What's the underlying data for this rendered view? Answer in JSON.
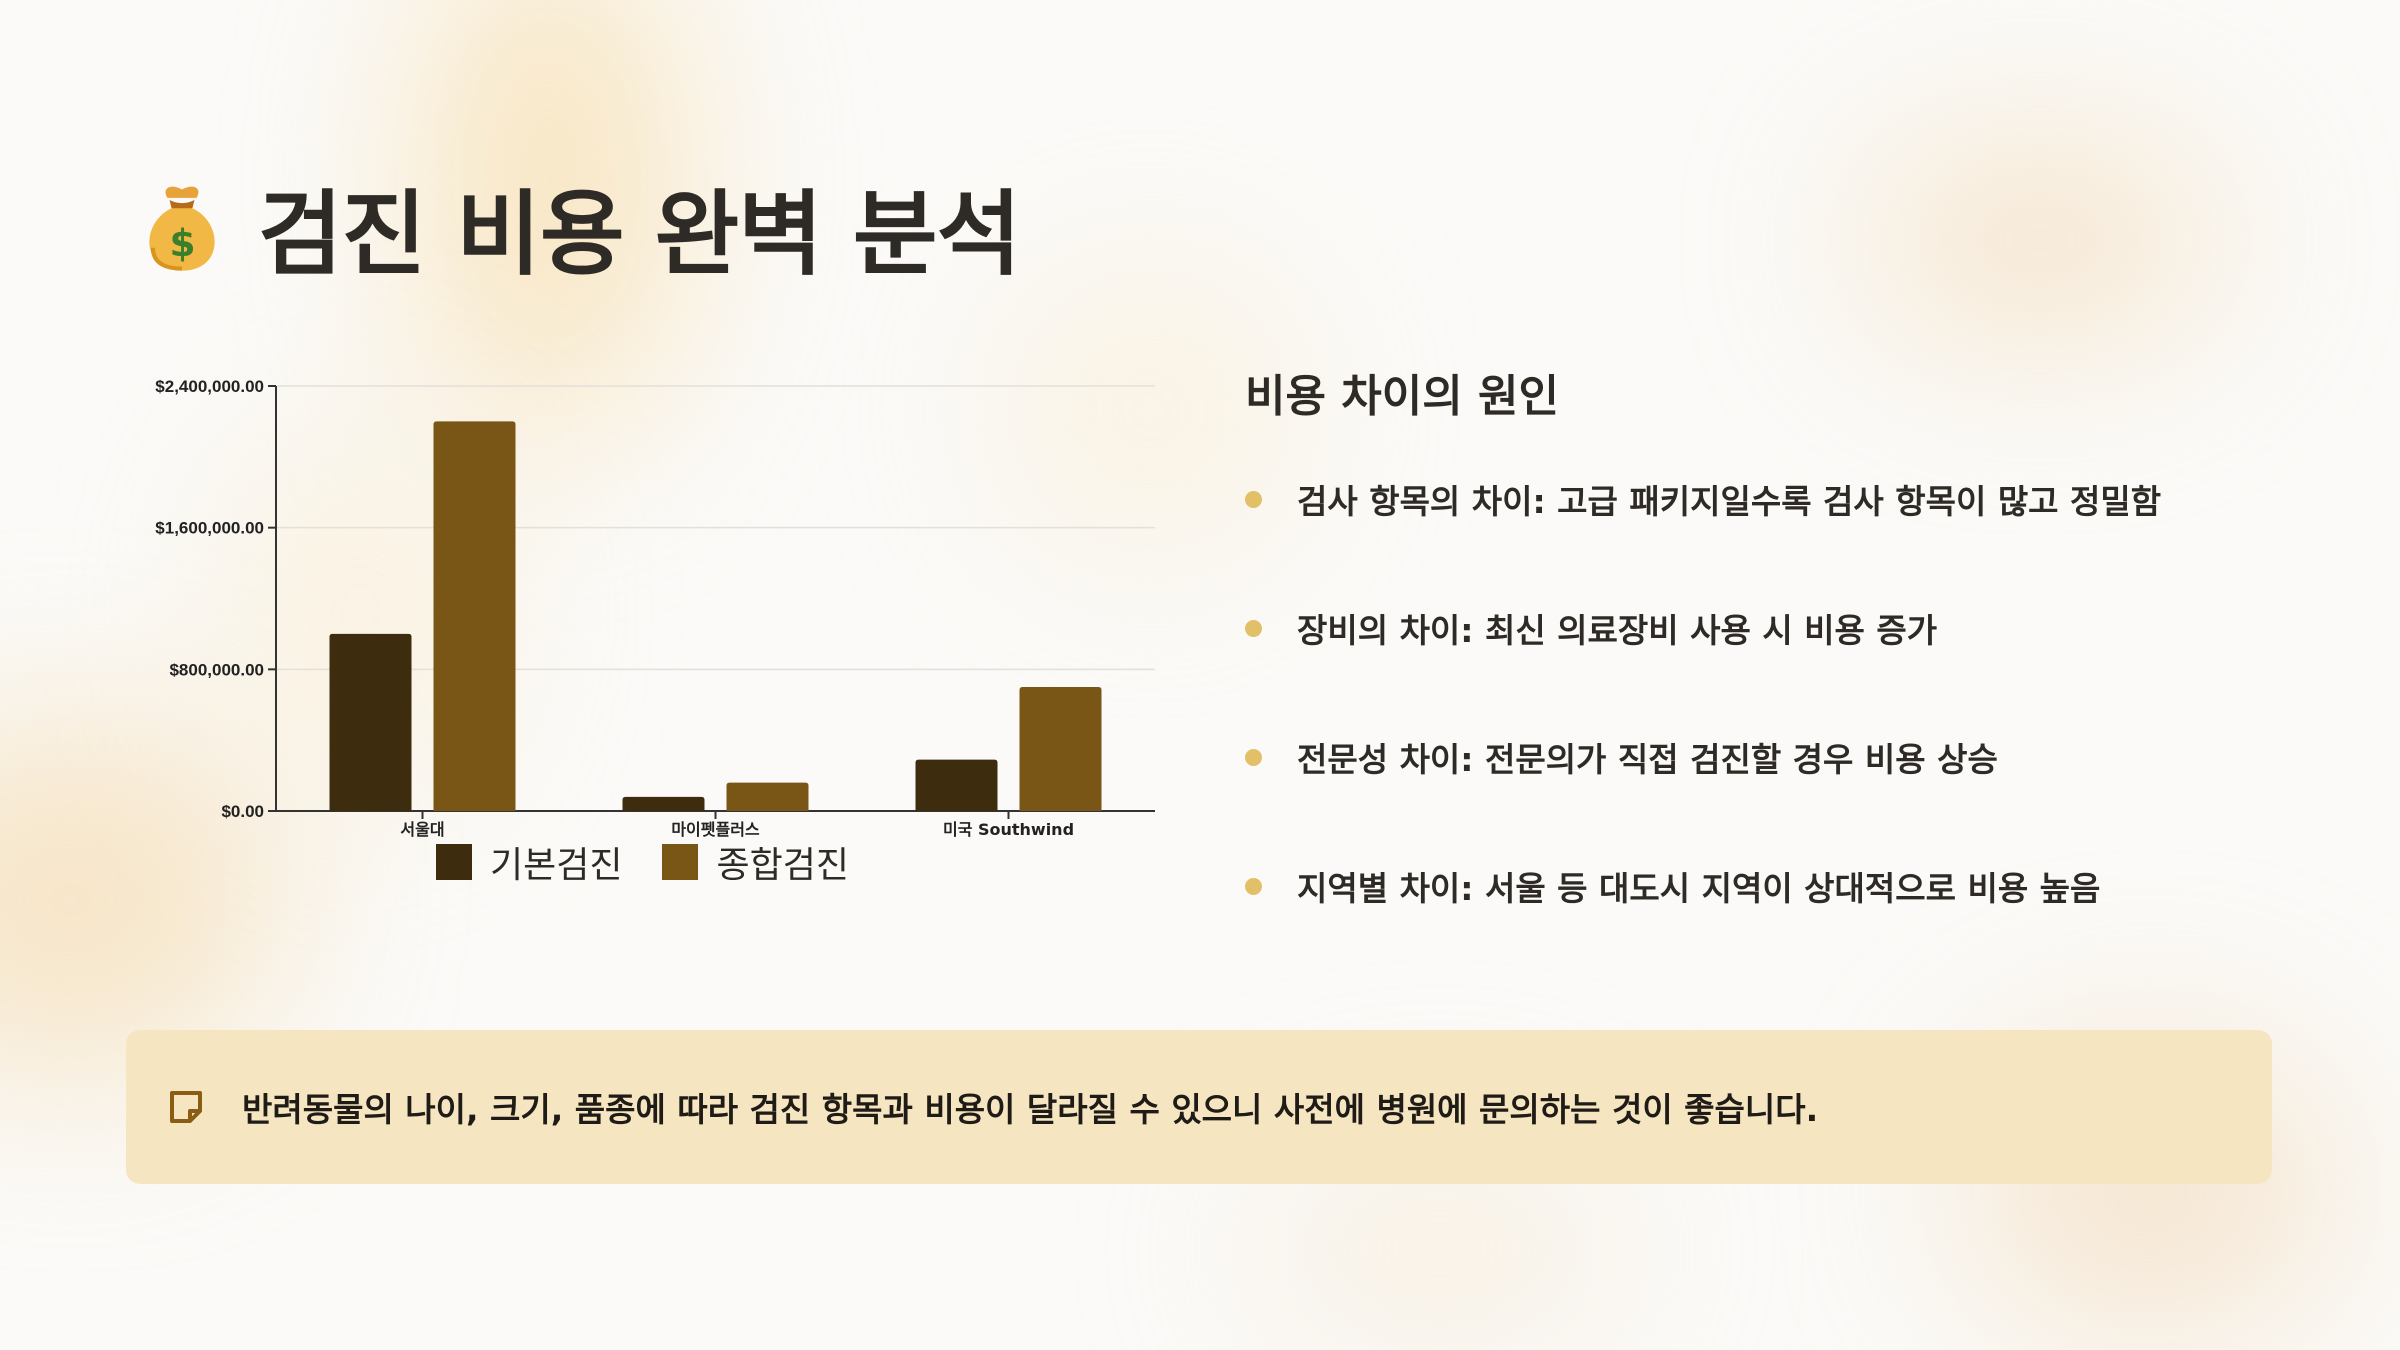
{
  "page": {
    "title": "검진 비용 완벽 분석",
    "title_icon": "money-bag-icon"
  },
  "chart_data": {
    "type": "bar",
    "categories": [
      "서울대",
      "마이펫플러스",
      "미국 Southwind"
    ],
    "series": [
      {
        "name": "기본검진",
        "color": "#3e2c0e",
        "values": [
          1000000,
          80000,
          290000
        ]
      },
      {
        "name": "종합검진",
        "color": "#7a5616",
        "values": [
          2200000,
          160000,
          700000
        ]
      }
    ],
    "yticks": [
      "$0.00",
      "$800,000.00",
      "$1,600,000.00",
      "$2,400,000.00"
    ],
    "ylim": [
      0,
      2400000
    ],
    "grid": true,
    "legend_position": "bottom",
    "title": "",
    "xlabel": "",
    "ylabel": ""
  },
  "causes": {
    "title": "비용 차이의 원인",
    "bullet_color": "#e2c068",
    "items": [
      {
        "text": "검사 항목의 차이: 고급 패키지일수록 검사 항목이 많고 정밀함"
      },
      {
        "text": "장비의 차이: 최신 의료장비 사용 시 비용 증가"
      },
      {
        "text": "전문성 차이: 전문의가 직접 검진할 경우 비용 상승"
      },
      {
        "text": "지역별 차이: 서울 등 대도시 지역이 상대적으로 비용 높음"
      }
    ]
  },
  "note": {
    "icon": "memo-icon",
    "text": "반려동물의 나이, 크기, 품종에 따라 검진 항목과 비용이 달라질 수 있으니 사전에 병원에 문의하는 것이 좋습니다.",
    "background": "#f6e5c1"
  }
}
